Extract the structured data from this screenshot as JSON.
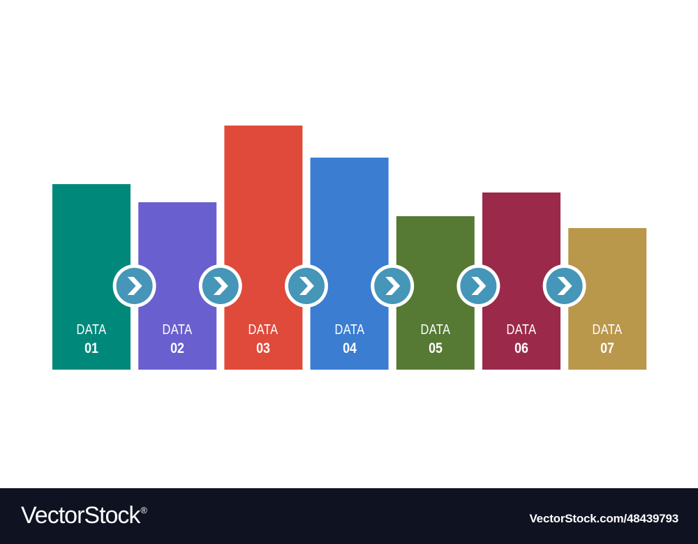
{
  "chart_data": {
    "type": "bar",
    "categories": [
      "DATA 01",
      "DATA 02",
      "DATA 03",
      "DATA 04",
      "DATA 05",
      "DATA 06",
      "DATA 07"
    ],
    "values": [
      266,
      240,
      350,
      304,
      220,
      254,
      203
    ],
    "label_word": "DATA",
    "label_numbers": [
      "01",
      "02",
      "03",
      "04",
      "05",
      "06",
      "07"
    ],
    "colors": [
      "#00897b",
      "#6a5fcf",
      "#e04a3a",
      "#3a7dd1",
      "#567934",
      "#9b2a4a",
      "#b9974b"
    ],
    "connector_color": "#4596b8",
    "connector_icon": "chevron-right-icon",
    "title": "",
    "xlabel": "",
    "ylabel": "",
    "grid": false
  },
  "footer": {
    "brand": "VectorStock",
    "brand_mark": "®",
    "url": "VectorStock.com/48439793"
  }
}
